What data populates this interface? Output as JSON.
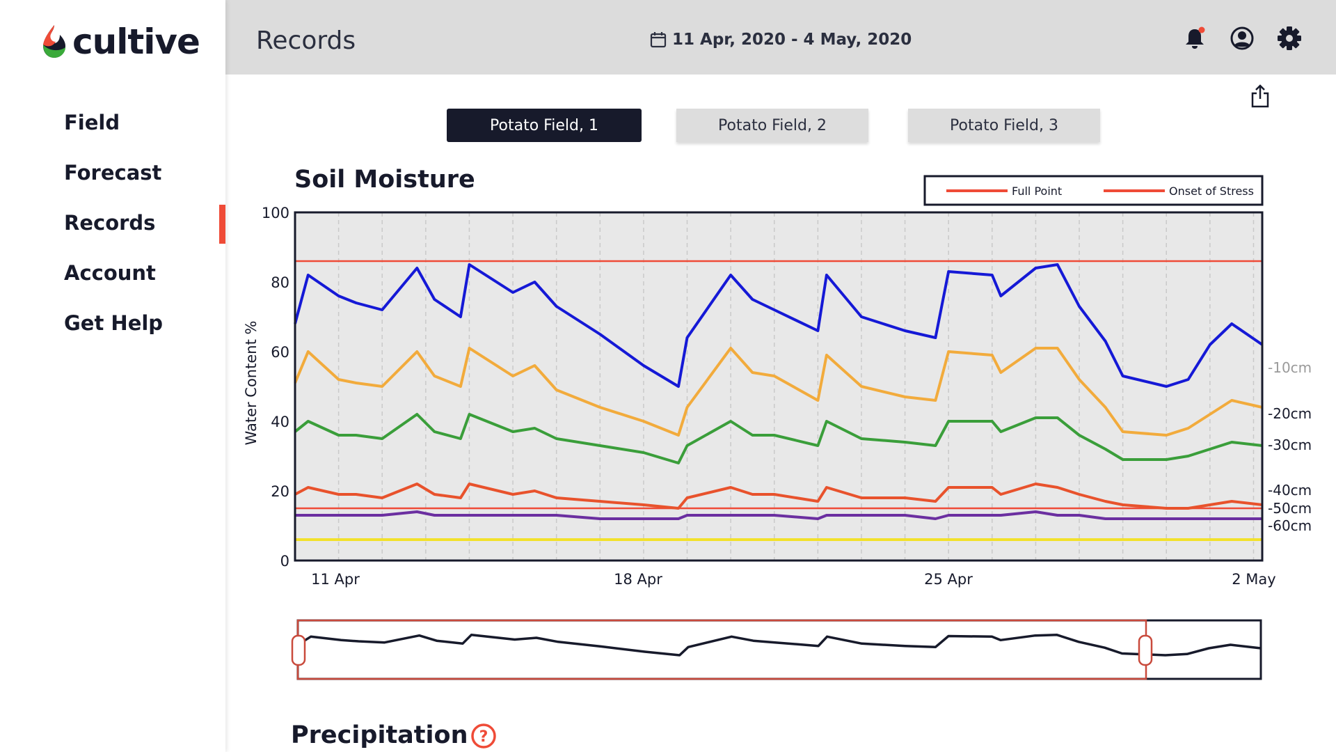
{
  "app": {
    "name": "cultive",
    "brand_color": "#ef4b37"
  },
  "sidebar": {
    "items": [
      {
        "label": "Field",
        "active": false
      },
      {
        "label": "Forecast",
        "active": false
      },
      {
        "label": "Records",
        "active": true
      },
      {
        "label": "Account",
        "active": false
      },
      {
        "label": "Get Help",
        "active": false
      }
    ]
  },
  "header": {
    "title": "Records",
    "date_range": "11 Apr, 2020 - 4 May, 2020",
    "icons": [
      "bell-icon",
      "user-icon",
      "gear-icon"
    ]
  },
  "toolbar": {
    "share_icon": "share-icon"
  },
  "fields": {
    "tabs": [
      {
        "label": "Potato Field, 1",
        "selected": true
      },
      {
        "label": "Potato Field, 2",
        "selected": false
      },
      {
        "label": "Potato Field, 3",
        "selected": false
      }
    ]
  },
  "soil_moisture": {
    "title": "Soil Moisture",
    "legend": [
      "Full Point",
      "Onset of Stress"
    ],
    "ylabel": "Water Content %"
  },
  "precipitation": {
    "title": "Precipitation",
    "help_icon": "question-icon"
  },
  "chart_data": {
    "type": "line",
    "title": "Soil Moisture",
    "ylabel": "Water Content %",
    "ylim": [
      0,
      100
    ],
    "yticks": [
      0,
      20,
      40,
      60,
      80,
      100
    ],
    "xticks": [
      "11 Apr",
      "18 Apr",
      "25 Apr",
      "2 May"
    ],
    "xrange_days": [
      0,
      22.2
    ],
    "grid": "vertical dashed",
    "legend_position": "top-right",
    "reference_lines": [
      {
        "name": "Full Point",
        "value": 86,
        "color": "#ef4b37"
      },
      {
        "name": "Onset of Stress",
        "value": 15,
        "color": "#ef4b37"
      }
    ],
    "x": [
      0,
      0.3,
      1,
      1.4,
      2,
      2.8,
      3.2,
      3.8,
      4,
      5,
      5.5,
      6,
      7,
      8,
      8.8,
      9,
      10,
      10.5,
      11,
      12,
      12.2,
      13,
      14,
      14.7,
      15,
      16,
      16.2,
      17,
      17.5,
      18,
      18.6,
      19,
      20,
      20.5,
      21,
      21.5,
      22.2
    ],
    "series": [
      {
        "name": "-10cm",
        "color": "#1519d6",
        "values": [
          68,
          82,
          76,
          74,
          72,
          84,
          75,
          70,
          85,
          77,
          80,
          73,
          65,
          56,
          50,
          64,
          82,
          75,
          72,
          66,
          82,
          70,
          66,
          64,
          83,
          82,
          76,
          84,
          85,
          73,
          63,
          53,
          50,
          52,
          62,
          68,
          62
        ]
      },
      {
        "name": "-20cm",
        "color": "#f2ab3c",
        "values": [
          51,
          60,
          52,
          51,
          50,
          60,
          53,
          50,
          61,
          53,
          56,
          49,
          44,
          40,
          36,
          44,
          61,
          54,
          53,
          46,
          59,
          50,
          47,
          46,
          60,
          59,
          54,
          61,
          61,
          52,
          44,
          37,
          36,
          38,
          42,
          46,
          44
        ]
      },
      {
        "name": "-30cm",
        "color": "#3a9e3a",
        "values": [
          37,
          40,
          36,
          36,
          35,
          42,
          37,
          35,
          42,
          37,
          38,
          35,
          33,
          31,
          28,
          33,
          40,
          36,
          36,
          33,
          40,
          35,
          34,
          33,
          40,
          40,
          37,
          41,
          41,
          36,
          32,
          29,
          29,
          30,
          32,
          34,
          33
        ]
      },
      {
        "name": "-40cm",
        "color": "#e8522c",
        "values": [
          19,
          21,
          19,
          19,
          18,
          22,
          19,
          18,
          22,
          19,
          20,
          18,
          17,
          16,
          15,
          18,
          21,
          19,
          19,
          17,
          21,
          18,
          18,
          17,
          21,
          21,
          19,
          22,
          21,
          19,
          17,
          16,
          15,
          15,
          16,
          17,
          16
        ]
      },
      {
        "name": "-50cm",
        "color": "#6b2fa0",
        "values": [
          13,
          13,
          13,
          13,
          13,
          14,
          13,
          13,
          13,
          13,
          13,
          13,
          12,
          12,
          12,
          13,
          13,
          13,
          13,
          12,
          13,
          13,
          13,
          12,
          13,
          13,
          13,
          14,
          13,
          13,
          12,
          12,
          12,
          12,
          12,
          12,
          12
        ]
      },
      {
        "name": "-60cm",
        "color": "#f2e12b",
        "values": [
          6,
          6,
          6,
          6,
          6,
          6,
          6,
          6,
          6,
          6,
          6,
          6,
          6,
          6,
          6,
          6,
          6,
          6,
          6,
          6,
          6,
          6,
          6,
          6,
          6,
          6,
          6,
          6,
          6,
          6,
          6,
          6,
          6,
          6,
          6,
          6,
          6
        ]
      }
    ]
  }
}
